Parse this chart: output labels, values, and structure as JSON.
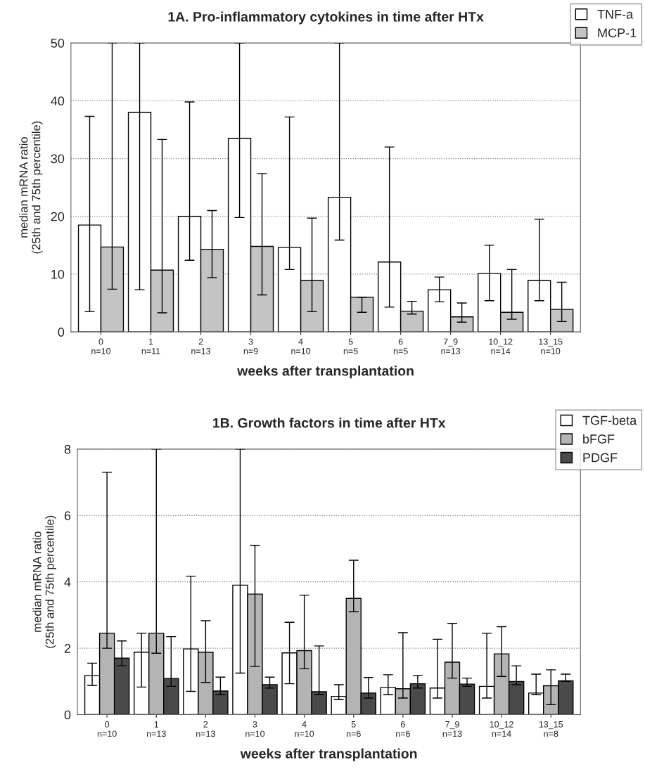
{
  "chart_data": [
    {
      "type": "bar",
      "title": "1A. Pro-inflammatory cytokines in time after HTx",
      "xlabel": "weeks after transplantation",
      "ylabel": "median mRNA ratio\n(25th and 75th percentile)",
      "categories": [
        "0\nn=10",
        "1\nn=11",
        "2\nn=13",
        "3\nn=9",
        "4\nn=10",
        "5\nn=5",
        "6\nn=5",
        "7_9\nn=13",
        "10_12\nn=14",
        "13_15\nn=10"
      ],
      "series": [
        {
          "name": "TNF-a",
          "color": "#ffffff",
          "values": [
            18.5,
            38,
            20,
            33.5,
            14.6,
            23.3,
            12.1,
            7.3,
            10.1,
            8.9
          ],
          "errors": [
            [
              3.5,
              37.3
            ],
            [
              7.3,
              50
            ],
            [
              12.4,
              39.8
            ],
            [
              19.8,
              50
            ],
            [
              10.8,
              37.2
            ],
            [
              15.9,
              50
            ],
            [
              4.3,
              32
            ],
            [
              5.2,
              9.5
            ],
            [
              5.4,
              15
            ],
            [
              5.4,
              19.5
            ]
          ]
        },
        {
          "name": "MCP-1",
          "color": "#c4c4c4",
          "values": [
            14.7,
            10.7,
            14.3,
            14.8,
            8.9,
            6,
            3.6,
            2.6,
            3.4,
            3.9
          ],
          "errors": [
            [
              7.4,
              50
            ],
            [
              3.3,
              33.3
            ],
            [
              9.4,
              21
            ],
            [
              6.4,
              27.4
            ],
            [
              3.5,
              19.7
            ],
            [
              3.4,
              6
            ],
            [
              3.1,
              5.3
            ],
            [
              1.7,
              5
            ],
            [
              2.2,
              10.8
            ],
            [
              1.8,
              8.6
            ]
          ]
        }
      ],
      "ylim": [
        0,
        50
      ],
      "yticks": [
        0,
        10,
        20,
        30,
        40,
        50
      ],
      "grid": "y",
      "legend": "top right"
    },
    {
      "type": "bar",
      "title": "1B. Growth factors in time after HTx",
      "xlabel": "weeks after transplantation",
      "ylabel": "median mRNA ratio\n(25th and 75th percentile)",
      "categories": [
        "0\nn=10",
        "1\nn=13",
        "2\nn=13",
        "3\nn=10",
        "4\nn=10",
        "5\nn=6",
        "6\nn=6",
        "7_9\nn=13",
        "10_12\nn=14",
        "13_15\nn=8"
      ],
      "series": [
        {
          "name": "TGF-beta",
          "color": "#ffffff",
          "values": [
            1.18,
            1.88,
            1.98,
            3.9,
            1.86,
            0.55,
            0.82,
            0.8,
            0.85,
            0.65
          ],
          "errors": [
            [
              0.88,
              1.55
            ],
            [
              0.83,
              2.45
            ],
            [
              0.7,
              4.17
            ],
            [
              1.25,
              8
            ],
            [
              0.93,
              2.78
            ],
            [
              0.45,
              0.9
            ],
            [
              0.6,
              1.2
            ],
            [
              0.5,
              2.27
            ],
            [
              0.5,
              2.45
            ],
            [
              0.6,
              1.22
            ]
          ]
        },
        {
          "name": "bFGF",
          "color": "#b4b4b4",
          "values": [
            2.45,
            2.45,
            1.88,
            3.63,
            1.93,
            3.5,
            0.78,
            1.58,
            1.83,
            0.87
          ],
          "errors": [
            [
              2.0,
              7.3
            ],
            [
              1.85,
              8
            ],
            [
              0.97,
              2.83
            ],
            [
              1.45,
              5.1
            ],
            [
              1.38,
              3.6
            ],
            [
              3.1,
              4.65
            ],
            [
              0.5,
              2.47
            ],
            [
              1.1,
              2.75
            ],
            [
              1.15,
              2.65
            ],
            [
              0.3,
              1.35
            ]
          ]
        },
        {
          "name": "PDGF",
          "color": "#4a4a4a",
          "values": [
            1.7,
            1.09,
            0.71,
            0.9,
            0.69,
            0.65,
            0.93,
            0.92,
            1.0,
            1.02
          ],
          "errors": [
            [
              1.47,
              2.22
            ],
            [
              0.85,
              2.35
            ],
            [
              0.6,
              1.13
            ],
            [
              0.8,
              1.13
            ],
            [
              0.6,
              2.07
            ],
            [
              0.5,
              1.12
            ],
            [
              0.8,
              1.18
            ],
            [
              0.85,
              1.1
            ],
            [
              0.9,
              1.47
            ],
            [
              1.0,
              1.22
            ]
          ]
        }
      ],
      "ylim": [
        0,
        8
      ],
      "yticks": [
        0,
        2,
        4,
        6,
        8
      ],
      "grid": "y",
      "legend": "top right"
    }
  ]
}
